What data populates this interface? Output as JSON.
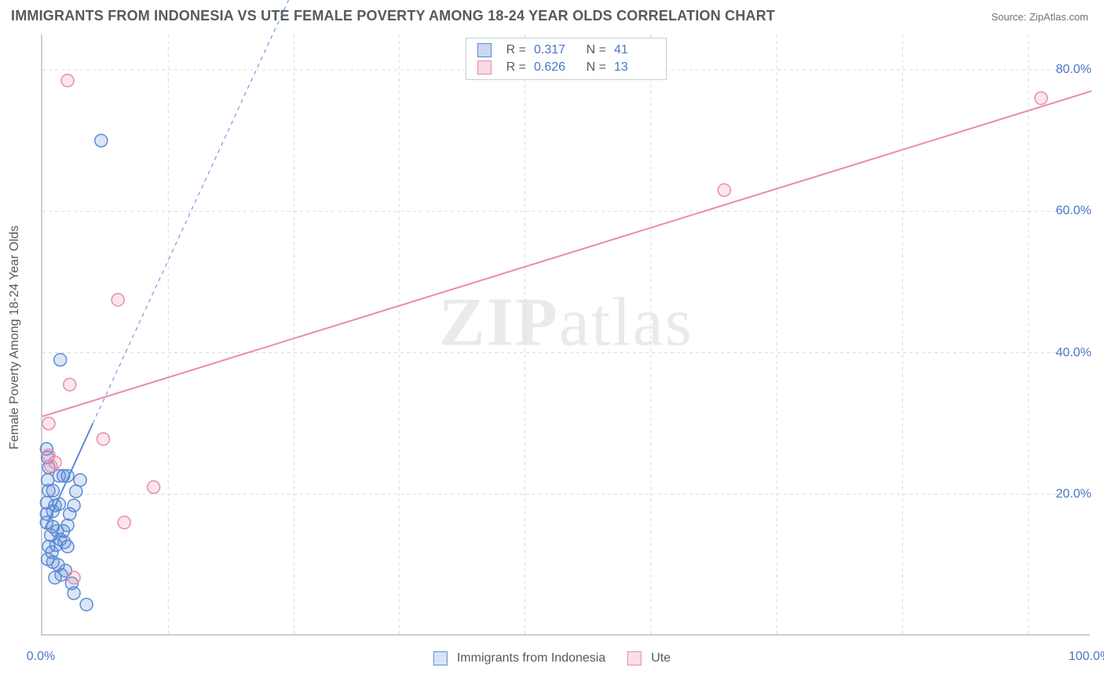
{
  "title": "IMMIGRANTS FROM INDONESIA VS UTE FEMALE POVERTY AMONG 18-24 YEAR OLDS CORRELATION CHART",
  "source": "Source: ZipAtlas.com",
  "watermark": {
    "bold": "ZIP",
    "light": "atlas"
  },
  "y_axis_label": "Female Poverty Among 18-24 Year Olds",
  "chart": {
    "type": "scatter",
    "xlim": [
      0,
      100
    ],
    "ylim": [
      0,
      85
    ],
    "x_ticks": [
      {
        "pos": 0.0,
        "label": "0.0%"
      },
      {
        "pos": 100.0,
        "label": "100.0%"
      }
    ],
    "x_minor_ticks_pct": [
      12,
      24,
      34,
      46,
      58,
      70,
      82,
      94
    ],
    "y_ticks": [
      {
        "pos": 20.0,
        "label": "20.0%"
      },
      {
        "pos": 40.0,
        "label": "40.0%"
      },
      {
        "pos": 60.0,
        "label": "60.0%"
      },
      {
        "pos": 80.0,
        "label": "80.0%"
      }
    ],
    "background_color": "#ffffff",
    "grid_color": "#d7dbe0",
    "marker_radius": 8,
    "marker_stroke_width": 1.5,
    "marker_fill_opacity": 0.22,
    "series": [
      {
        "name": "Immigrants from Indonesia",
        "color": "#5b8ad6",
        "fill": "#5b8ad6",
        "R": "0.317",
        "N": "41",
        "trend": {
          "x1": 0.2,
          "y1": 15.0,
          "x2": 4.8,
          "y2": 30.0,
          "ext_x2": 26.0,
          "ext_y2": 98.0,
          "width": 2
        },
        "points": [
          {
            "x": 0.6,
            "y": 23.8
          },
          {
            "x": 0.5,
            "y": 25.2
          },
          {
            "x": 0.4,
            "y": 26.4
          },
          {
            "x": 5.6,
            "y": 70.0
          },
          {
            "x": 1.7,
            "y": 39.0
          },
          {
            "x": 0.6,
            "y": 20.5
          },
          {
            "x": 1.0,
            "y": 20.5
          },
          {
            "x": 1.6,
            "y": 22.6
          },
          {
            "x": 2.0,
            "y": 22.6
          },
          {
            "x": 2.4,
            "y": 22.6
          },
          {
            "x": 0.4,
            "y": 17.2
          },
          {
            "x": 0.4,
            "y": 18.8
          },
          {
            "x": 0.4,
            "y": 16.0
          },
          {
            "x": 1.0,
            "y": 17.6
          },
          {
            "x": 1.2,
            "y": 18.4
          },
          {
            "x": 1.6,
            "y": 18.6
          },
          {
            "x": 0.8,
            "y": 14.2
          },
          {
            "x": 1.0,
            "y": 15.4
          },
          {
            "x": 1.4,
            "y": 14.8
          },
          {
            "x": 0.6,
            "y": 12.6
          },
          {
            "x": 0.9,
            "y": 11.8
          },
          {
            "x": 1.3,
            "y": 12.8
          },
          {
            "x": 1.7,
            "y": 13.6
          },
          {
            "x": 2.1,
            "y": 13.2
          },
          {
            "x": 2.4,
            "y": 12.6
          },
          {
            "x": 0.5,
            "y": 10.8
          },
          {
            "x": 1.0,
            "y": 10.4
          },
          {
            "x": 1.5,
            "y": 10.0
          },
          {
            "x": 2.0,
            "y": 14.8
          },
          {
            "x": 2.4,
            "y": 15.6
          },
          {
            "x": 1.2,
            "y": 8.2
          },
          {
            "x": 1.8,
            "y": 8.6
          },
          {
            "x": 2.2,
            "y": 9.2
          },
          {
            "x": 2.8,
            "y": 7.4
          },
          {
            "x": 3.0,
            "y": 6.0
          },
          {
            "x": 4.2,
            "y": 4.4
          },
          {
            "x": 3.2,
            "y": 20.4
          },
          {
            "x": 3.6,
            "y": 22.0
          },
          {
            "x": 2.6,
            "y": 17.2
          },
          {
            "x": 3.0,
            "y": 18.4
          },
          {
            "x": 0.5,
            "y": 22.0
          }
        ]
      },
      {
        "name": "Ute",
        "color": "#e98da8",
        "fill": "#e98da8",
        "R": "0.626",
        "N": "13",
        "trend": {
          "x1": 0.0,
          "y1": 31.0,
          "x2": 100.0,
          "y2": 77.0,
          "width": 2
        },
        "points": [
          {
            "x": 2.4,
            "y": 78.5
          },
          {
            "x": 95.2,
            "y": 76.0
          },
          {
            "x": 65.0,
            "y": 63.0
          },
          {
            "x": 7.2,
            "y": 47.5
          },
          {
            "x": 2.6,
            "y": 35.5
          },
          {
            "x": 0.6,
            "y": 30.0
          },
          {
            "x": 5.8,
            "y": 27.8
          },
          {
            "x": 0.6,
            "y": 25.5
          },
          {
            "x": 1.2,
            "y": 24.5
          },
          {
            "x": 10.6,
            "y": 21.0
          },
          {
            "x": 7.8,
            "y": 16.0
          },
          {
            "x": 3.0,
            "y": 8.2
          },
          {
            "x": 0.8,
            "y": 24.0
          }
        ]
      }
    ]
  },
  "stat_legend_labels": {
    "R": "R  =",
    "N": "N  ="
  },
  "bottom_legend": [
    {
      "swatch_fill": "#d8e4f5",
      "swatch_border": "#5b8ad6",
      "label": "Immigrants from Indonesia"
    },
    {
      "swatch_fill": "#fadfe8",
      "swatch_border": "#e98da8",
      "label": "Ute"
    }
  ]
}
